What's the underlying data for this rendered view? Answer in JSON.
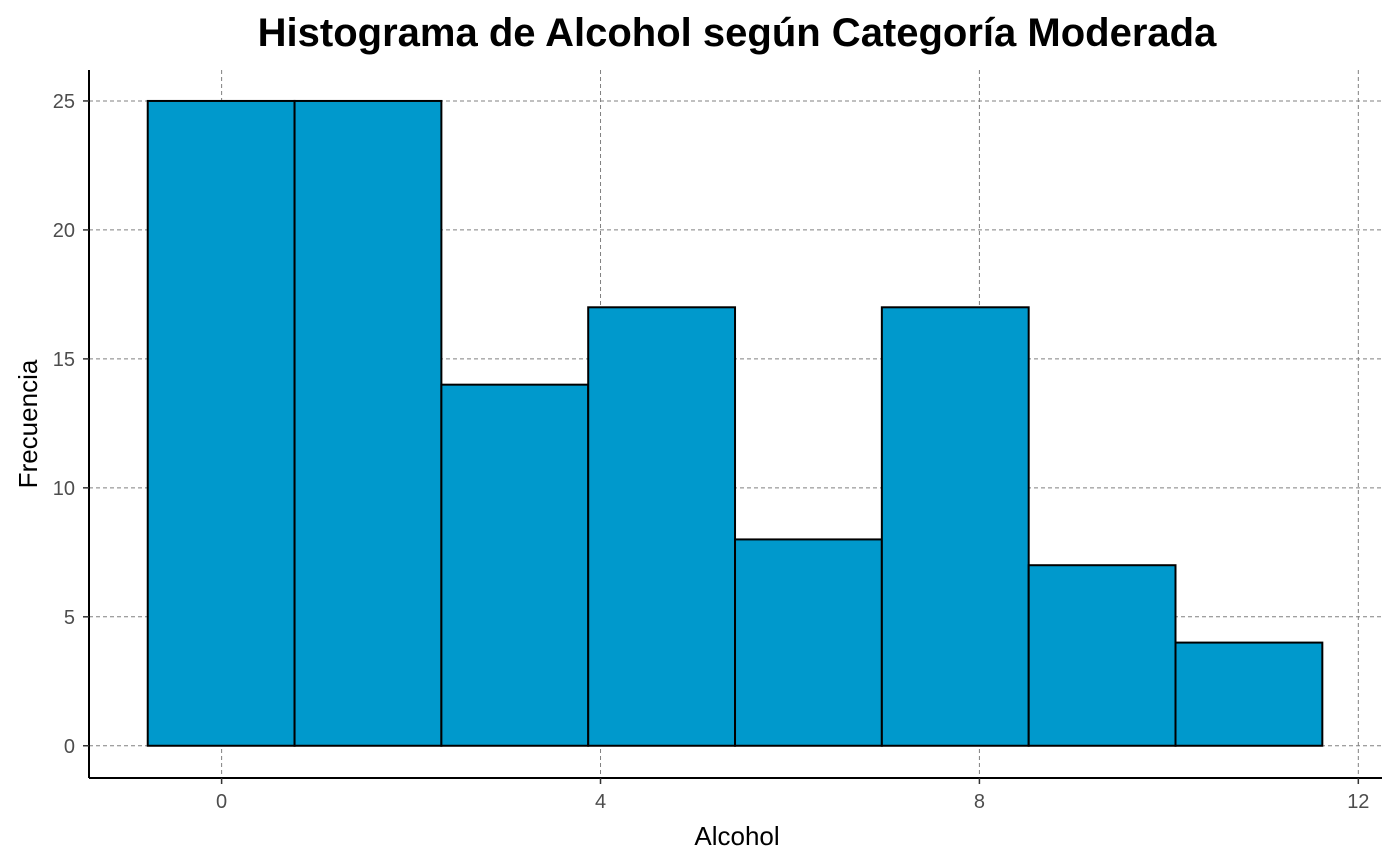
{
  "chart_data": {
    "type": "bar",
    "title": "Histograma de Alcohol según Categoría Moderada",
    "xlabel": "Alcohol",
    "ylabel": "Frecuencia",
    "bins": [
      {
        "start": -0.78,
        "end": 0.77,
        "count": 25
      },
      {
        "start": 0.77,
        "end": 2.32,
        "count": 25
      },
      {
        "start": 2.32,
        "end": 3.87,
        "count": 14
      },
      {
        "start": 3.87,
        "end": 5.42,
        "count": 17
      },
      {
        "start": 5.42,
        "end": 6.97,
        "count": 8
      },
      {
        "start": 6.97,
        "end": 8.52,
        "count": 17
      },
      {
        "start": 8.52,
        "end": 10.07,
        "count": 7
      },
      {
        "start": 10.07,
        "end": 11.62,
        "count": 4
      }
    ],
    "xticks": [
      0,
      4,
      8,
      12
    ],
    "yticks": [
      0,
      5,
      10,
      15,
      20,
      25
    ],
    "xlim": [
      -1.4,
      12.25
    ],
    "ylim": [
      -1.25,
      26.2
    ],
    "bar_color": "#0099CC",
    "bar_edge_color": "#000000",
    "grid": true,
    "grid_style": "dashed",
    "legend": false
  }
}
